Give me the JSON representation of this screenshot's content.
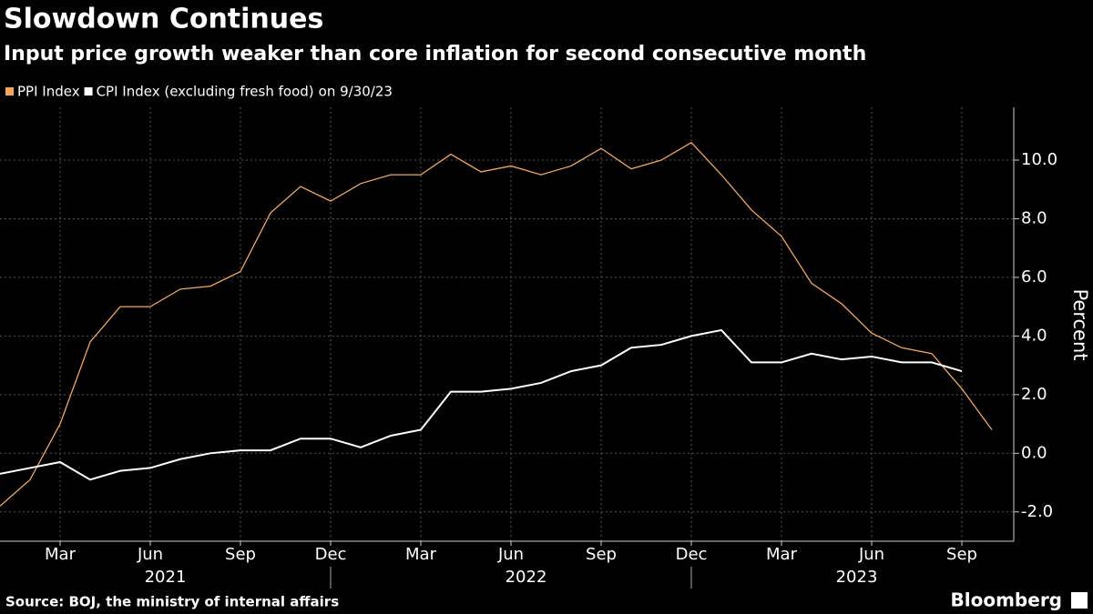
{
  "chart_data": {
    "type": "line",
    "title": "Slowdown Continues",
    "subtitle": "Input price growth weaker than core inflation for second consecutive month",
    "legend_note": "on 9/30/23",
    "y_axis_label": "Percent",
    "source": "Source: BOJ, the ministry of internal affairs",
    "brand": "Bloomberg",
    "x": [
      "2021-01",
      "2021-02",
      "2021-03",
      "2021-04",
      "2021-05",
      "2021-06",
      "2021-07",
      "2021-08",
      "2021-09",
      "2021-10",
      "2021-11",
      "2021-12",
      "2022-01",
      "2022-02",
      "2022-03",
      "2022-04",
      "2022-05",
      "2022-06",
      "2022-07",
      "2022-08",
      "2022-09",
      "2022-10",
      "2022-11",
      "2022-12",
      "2023-01",
      "2023-02",
      "2023-03",
      "2023-04",
      "2023-05",
      "2023-06",
      "2023-07",
      "2023-08",
      "2023-09",
      "2023-10"
    ],
    "series": [
      {
        "name": "PPI Index",
        "color": "#f4a65c",
        "values": [
          -1.8,
          -0.9,
          1.0,
          3.8,
          5.0,
          5.0,
          5.6,
          5.7,
          6.2,
          8.2,
          9.1,
          8.6,
          9.2,
          9.5,
          9.5,
          10.2,
          9.6,
          9.8,
          9.5,
          9.8,
          10.4,
          9.7,
          10.0,
          10.6,
          9.5,
          8.3,
          7.4,
          5.8,
          5.1,
          4.1,
          3.6,
          3.4,
          2.2,
          0.8
        ]
      },
      {
        "name": "CPI Index (excluding fresh food)",
        "color": "#ffffff",
        "values": [
          -0.7,
          -0.5,
          -0.3,
          -0.9,
          -0.6,
          -0.5,
          -0.2,
          0.0,
          0.1,
          0.1,
          0.5,
          0.5,
          0.2,
          0.6,
          0.8,
          2.1,
          2.1,
          2.2,
          2.4,
          2.8,
          3.0,
          3.6,
          3.7,
          4.0,
          4.2,
          3.1,
          3.1,
          3.4,
          3.2,
          3.3,
          3.1,
          3.1,
          2.8,
          null
        ]
      }
    ],
    "ylim": [
      -3,
      11.8
    ],
    "yticks": [
      {
        "value": -2,
        "label": "-2.0"
      },
      {
        "value": 0,
        "label": "0.0"
      },
      {
        "value": 2,
        "label": "2.0"
      },
      {
        "value": 4,
        "label": "4.0"
      },
      {
        "value": 6,
        "label": "6.0"
      },
      {
        "value": 8,
        "label": "8.0"
      },
      {
        "value": 10,
        "label": "10.0"
      }
    ],
    "xticks": [
      {
        "value": "2021-03",
        "label": "Mar"
      },
      {
        "value": "2021-06",
        "label": "Jun"
      },
      {
        "value": "2021-09",
        "label": "Sep"
      },
      {
        "value": "2021-12",
        "label": "Dec"
      },
      {
        "value": "2022-03",
        "label": "Mar"
      },
      {
        "value": "2022-06",
        "label": "Jun"
      },
      {
        "value": "2022-09",
        "label": "Sep"
      },
      {
        "value": "2022-12",
        "label": "Dec"
      },
      {
        "value": "2023-03",
        "label": "Mar"
      },
      {
        "value": "2023-06",
        "label": "Jun"
      },
      {
        "value": "2023-09",
        "label": "Sep"
      }
    ],
    "year_labels": [
      "2021",
      "2022",
      "2023"
    ],
    "grid": true
  }
}
